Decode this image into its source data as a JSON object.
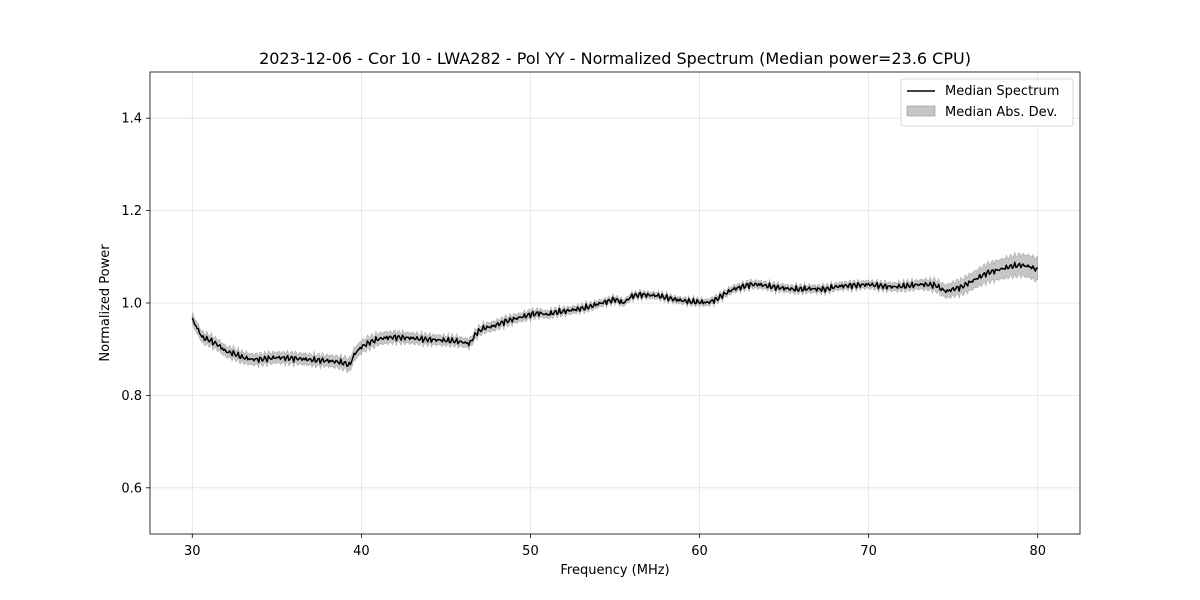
{
  "chart_data": {
    "type": "line",
    "title": "2023-12-06 - Cor 10 - LWA282 - Pol YY - Normalized Spectrum (Median power=23.6 CPU)",
    "xlabel": "Frequency (MHz)",
    "ylabel": "Normalized Power",
    "xlim": [
      27.5,
      82.5
    ],
    "ylim": [
      0.5,
      1.5
    ],
    "xticks": [
      30,
      40,
      50,
      60,
      70,
      80
    ],
    "yticks": [
      0.6,
      0.8,
      1.0,
      1.2,
      1.4
    ],
    "xtick_labels": [
      "30",
      "40",
      "50",
      "60",
      "70",
      "80"
    ],
    "ytick_labels": [
      "0.6",
      "0.8",
      "1.0",
      "1.2",
      "1.4"
    ],
    "grid": true,
    "legend_position": "top-right",
    "series": [
      {
        "name": "Median Spectrum",
        "color": "#000000",
        "x": [
          30.0,
          30.3,
          30.6,
          31.0,
          31.5,
          32.0,
          32.5,
          33.0,
          33.5,
          34.0,
          34.5,
          35.0,
          35.5,
          36.0,
          36.5,
          37.0,
          37.5,
          38.0,
          38.5,
          39.0,
          39.3,
          39.6,
          40.0,
          40.5,
          41.0,
          41.5,
          42.0,
          42.5,
          43.0,
          43.5,
          44.0,
          44.5,
          45.0,
          45.5,
          46.0,
          46.4,
          46.8,
          47.2,
          47.8,
          48.5,
          49.0,
          49.5,
          50.0,
          50.5,
          51.0,
          51.5,
          52.0,
          52.5,
          53.0,
          53.5,
          54.0,
          54.5,
          55.0,
          55.5,
          56.0,
          56.5,
          57.0,
          57.5,
          58.0,
          58.5,
          59.0,
          59.5,
          60.0,
          60.5,
          61.0,
          61.5,
          62.0,
          62.5,
          63.0,
          63.5,
          64.0,
          64.5,
          65.0,
          65.5,
          66.0,
          66.5,
          67.0,
          67.5,
          68.0,
          68.5,
          69.0,
          69.5,
          70.0,
          70.5,
          71.0,
          71.5,
          72.0,
          72.5,
          73.0,
          73.5,
          74.0,
          74.3,
          74.6,
          75.0,
          75.5,
          76.0,
          76.5,
          77.0,
          77.5,
          78.0,
          78.5,
          79.0,
          79.5,
          80.0
        ],
        "values": [
          0.965,
          0.945,
          0.925,
          0.92,
          0.91,
          0.895,
          0.89,
          0.882,
          0.878,
          0.878,
          0.88,
          0.882,
          0.881,
          0.88,
          0.879,
          0.877,
          0.876,
          0.875,
          0.873,
          0.87,
          0.865,
          0.89,
          0.905,
          0.915,
          0.922,
          0.925,
          0.926,
          0.925,
          0.924,
          0.922,
          0.921,
          0.92,
          0.919,
          0.918,
          0.915,
          0.912,
          0.935,
          0.945,
          0.95,
          0.96,
          0.965,
          0.97,
          0.975,
          0.978,
          0.975,
          0.98,
          0.982,
          0.985,
          0.988,
          0.992,
          0.998,
          1.003,
          1.008,
          1.0,
          1.015,
          1.018,
          1.017,
          1.016,
          1.012,
          1.008,
          1.005,
          1.003,
          1.002,
          1.001,
          1.008,
          1.02,
          1.03,
          1.035,
          1.04,
          1.04,
          1.037,
          1.034,
          1.032,
          1.03,
          1.03,
          1.031,
          1.03,
          1.03,
          1.035,
          1.037,
          1.038,
          1.039,
          1.04,
          1.038,
          1.036,
          1.035,
          1.036,
          1.038,
          1.04,
          1.04,
          1.038,
          1.03,
          1.025,
          1.03,
          1.035,
          1.045,
          1.055,
          1.065,
          1.07,
          1.075,
          1.08,
          1.082,
          1.079,
          1.072
        ]
      },
      {
        "name": "Median Abs. Dev.",
        "color": "#808080",
        "type": "band",
        "x": [
          30.0,
          32.0,
          35.0,
          38.0,
          39.5,
          42.0,
          46.0,
          48.0,
          52.0,
          56.0,
          60.0,
          63.0,
          67.0,
          70.0,
          73.0,
          74.5,
          76.0,
          78.0,
          80.0
        ],
        "values": [
          0.012,
          0.012,
          0.012,
          0.012,
          0.014,
          0.012,
          0.01,
          0.01,
          0.008,
          0.007,
          0.007,
          0.008,
          0.008,
          0.008,
          0.01,
          0.014,
          0.018,
          0.022,
          0.025
        ]
      }
    ]
  }
}
